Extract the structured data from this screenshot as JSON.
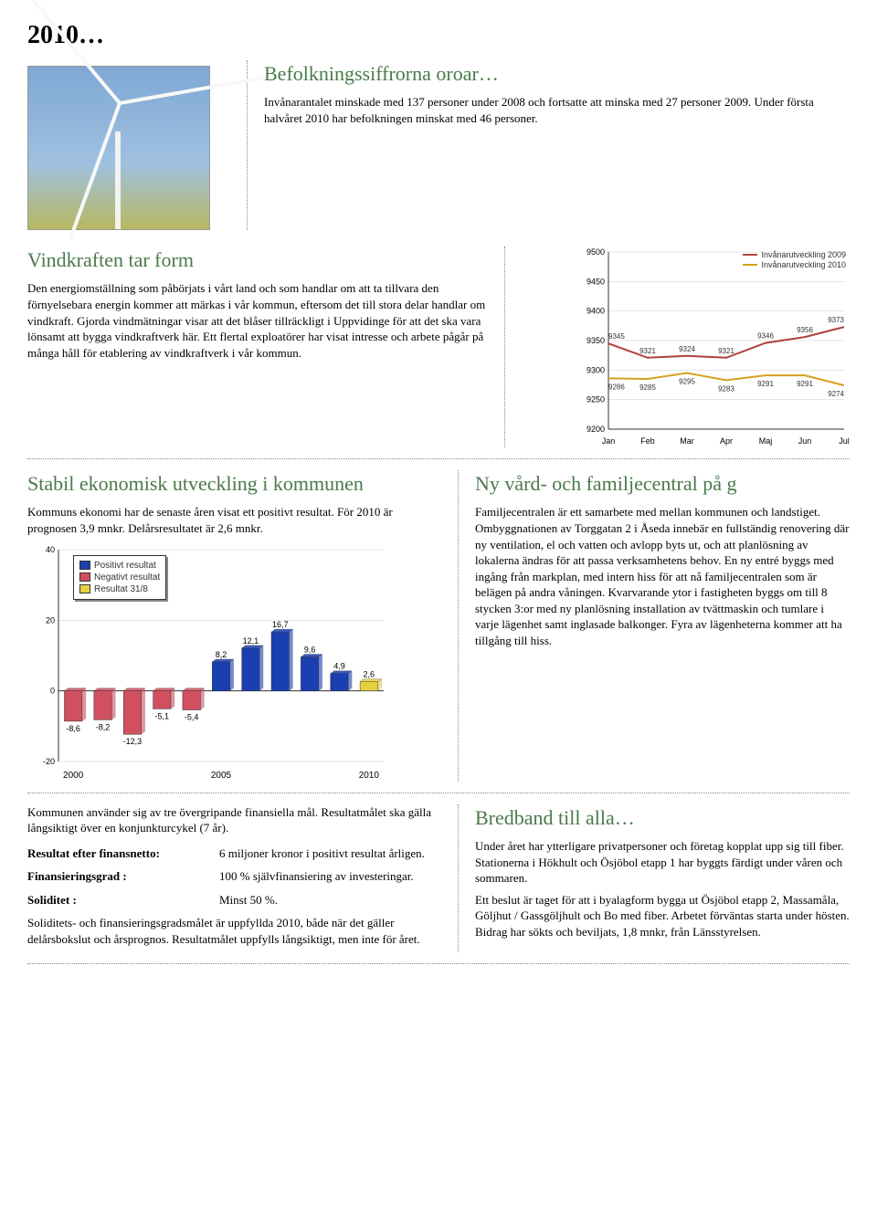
{
  "year_title": "2010…",
  "header": {
    "title": "Befolkningssiffrorna oroar…",
    "body": "Invånarantalet minskade med 137 personer under 2008 och fortsatte att minska med 27 personer 2009. Under första halvåret 2010 har befolkningen minskat med 46 personer."
  },
  "wind": {
    "title": "Vindkraften tar form",
    "body": "Den energiomställning som påbörjats i vårt land och som handlar om att ta tillvara den förnyelsebara energin kommer att märkas i vår kommun, eftersom det till stora delar handlar om vindkraft. Gjorda vindmätningar visar att det blåser tillräckligt i Uppvidinge för att det ska vara lönsamt att bygga vindkraftverk här. Ett flertal exploatörer har visat intresse och arbete pågår på många håll för etablering av vindkraftverk i vår kommun."
  },
  "popchart": {
    "type": "line",
    "legend": [
      "Invånarutveckling 2009",
      "Invånarutveckling 2010"
    ],
    "legend_colors": [
      "#b04040",
      "#d8a020"
    ],
    "months": [
      "Jan",
      "Feb",
      "Mar",
      "Apr",
      "Maj",
      "Jun",
      "Jul"
    ],
    "y2009": [
      9345,
      9321,
      9324,
      9321,
      9346,
      9356,
      9373
    ],
    "y2010": [
      9286,
      9285,
      9295,
      9283,
      9291,
      9291,
      9274
    ],
    "ylim": [
      9200,
      9500
    ],
    "ytick_step": 50,
    "line_colors": [
      "#b04040",
      "#d8a020"
    ],
    "background_color": "#ffffff",
    "grid_color": "#cccccc",
    "axis_color": "#333333",
    "label_fontsize": 9
  },
  "econ": {
    "title": "Stabil ekonomisk utveckling i kommunen",
    "intro": "Kommuns ekonomi har de senaste åren visat ett positivt resultat. För 2010 är prognosen 3,9 mnkr. Delårsresultatet är 2,6 mnkr."
  },
  "barchart": {
    "type": "bar",
    "legend": [
      "Positivt resultat",
      "Negativt resultat",
      "Resultat 31/8"
    ],
    "legend_colors": [
      "#1a3fb0",
      "#d05060",
      "#e6d040"
    ],
    "years": [
      2000,
      2001,
      2002,
      2003,
      2004,
      2005,
      2006,
      2007,
      2008,
      2009,
      2010
    ],
    "values": [
      -8.6,
      -8.2,
      -12.3,
      -5.1,
      -5.4,
      8.2,
      12.1,
      16.7,
      9.6,
      4.9,
      2.6
    ],
    "colors": [
      "#d05060",
      "#d05060",
      "#d05060",
      "#d05060",
      "#d05060",
      "#1a3fb0",
      "#1a3fb0",
      "#1a3fb0",
      "#1a3fb0",
      "#1a3fb0",
      "#e6d040"
    ],
    "xticks": [
      "2000",
      "2005",
      "2010"
    ],
    "ylim": [
      -20,
      40
    ],
    "ytick_step": 20,
    "bar_width": 0.6,
    "grid_color": "#cccccc",
    "axis_color": "#333333",
    "background_color": "#ffffff"
  },
  "goals": {
    "intro": "Kommunen använder sig av tre övergripande finansiella mål. Resultatmålet ska gälla långsiktigt över en konjunkturcykel (7 år).",
    "rows": [
      {
        "label": "Resultat efter finansnetto:",
        "value": "6 miljoner kronor i positivt resultat årligen."
      },
      {
        "label": "Finansieringsgrad :",
        "value": "100 % självfinansiering av investeringar."
      },
      {
        "label": "Soliditet :",
        "value": "Minst 50 %."
      }
    ],
    "outro": "Soliditets- och finansieringsgradsmålet är uppfyllda 2010, både när det gäller delårsbokslut och årsprognos. Resultatmålet uppfylls långsiktigt, men inte för året."
  },
  "care": {
    "title": "Ny vård- och familjecentral på g",
    "body": "Familjecentralen är ett samarbete med mellan kommunen och landstiget. Ombyggnationen av Torggatan 2 i Åseda innebär en fullständig renovering där ny ventilation, el och vatten och avlopp byts ut, och att planlösning av lokalerna ändras för att passa verksamhetens behov. En ny entré byggs med ingång från markplan, med intern hiss för att nå familjecentralen som är belägen på andra våningen. Kvarvarande ytor i fastigheten byggs om till 8 stycken 3:or med ny planlösning installation av tvättmaskin och tumlare i varje lägenhet samt inglasade balkonger. Fyra av lägenheterna kommer att ha tillgång till hiss."
  },
  "broadband": {
    "title": "Bredband till alla…",
    "p1": "Under året har ytterligare privatpersoner och företag kopplat upp sig till fiber. Stationerna i Hökhult och Ösjöbol etapp 1 har byggts färdigt under våren och sommaren.",
    "p2": "Ett beslut är taget för att i byalagform bygga ut Ösjöbol etapp 2, Massamåla, Göljhut / Gassgöljhult och Bo med fiber. Arbetet förväntas starta under hösten. Bidrag har sökts och beviljats, 1,8 mnkr, från Länsstyrelsen."
  }
}
